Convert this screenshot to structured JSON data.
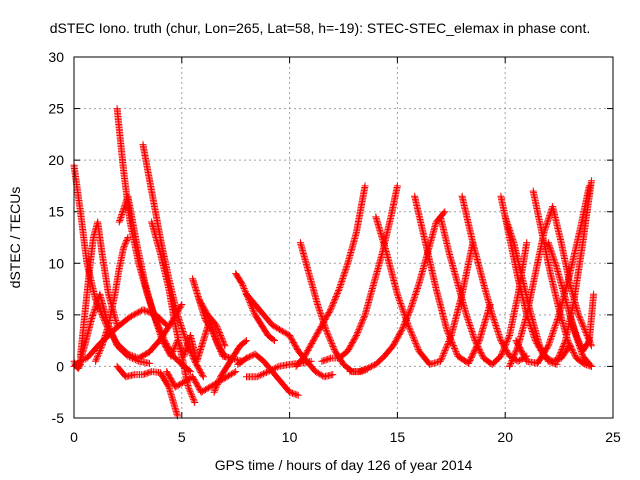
{
  "chart_data": {
    "type": "scatter",
    "title": "dSTEC Iono. truth (chur, Lon=265, Lat=58, h=-19): STEC-STEC_elemax in phase cont.",
    "xlabel": "GPS time / hours of day 126 of year 2014",
    "ylabel": "dSTEC  / TECUs",
    "xlim": [
      0,
      25
    ],
    "ylim": [
      -5,
      30
    ],
    "xticks": [
      0,
      5,
      10,
      15,
      20,
      25
    ],
    "yticks": [
      -5,
      0,
      5,
      10,
      15,
      20,
      25,
      30
    ],
    "grid": true,
    "marker": "+",
    "color": "#ff0000",
    "arcs": [
      {
        "x": [
          0.0,
          0.3,
          0.6,
          1.0,
          1.5,
          2.0,
          2.5,
          3.0,
          3.5,
          4.0,
          4.5,
          5.0
        ],
        "y": [
          19.5,
          15,
          10,
          6.5,
          4,
          2.2,
          1.2,
          0.8,
          1.4,
          2.6,
          4.2,
          6.0
        ]
      },
      {
        "x": [
          0.0,
          0.3,
          0.6,
          0.9,
          1.2,
          1.6,
          2.0,
          2.6,
          3.2,
          3.8,
          4.3
        ],
        "y": [
          0.0,
          0.5,
          0.8,
          1.5,
          2.2,
          3.0,
          3.8,
          4.8,
          5.5,
          5.0,
          4.0
        ]
      },
      {
        "x": [
          0.0,
          0.1,
          0.2,
          0.3
        ],
        "y": [
          0.5,
          0.0,
          -0.2,
          0.2
        ]
      },
      {
        "x": [
          0.2,
          0.5,
          0.8,
          1.2,
          1.6,
          2.0,
          2.5,
          3.0,
          3.5
        ],
        "y": [
          0.0,
          2.0,
          4.5,
          7.0,
          4.0,
          2.0,
          1.0,
          0.5,
          0.3
        ]
      },
      {
        "x": [
          0.3,
          0.5,
          0.7,
          0.9,
          1.1,
          1.3,
          1.6,
          2.0
        ],
        "y": [
          1.0,
          5.0,
          9.0,
          12.5,
          14.0,
          11.0,
          7.0,
          4.0
        ]
      },
      {
        "x": [
          1.0,
          1.3,
          1.6,
          1.9,
          2.1,
          2.3,
          2.5
        ],
        "y": [
          0.5,
          2.0,
          4.0,
          7.0,
          9.5,
          11.5,
          12.5
        ]
      },
      {
        "x": [
          2.0,
          2.3,
          2.6,
          3.0,
          3.4,
          3.8,
          4.2,
          4.6,
          5.0,
          5.4
        ],
        "y": [
          25.0,
          19.0,
          14.0,
          10.0,
          7.0,
          4.5,
          2.5,
          1.0,
          0.2,
          -0.5
        ]
      },
      {
        "x": [
          2.1,
          2.5,
          2.9,
          3.3,
          3.7,
          4.1,
          4.5
        ],
        "y": [
          14.0,
          16.5,
          12.0,
          8.0,
          5.0,
          2.5,
          1.0
        ]
      },
      {
        "x": [
          3.2,
          3.6,
          4.0,
          4.4,
          4.8,
          5.2,
          5.6,
          6.0
        ],
        "y": [
          21.5,
          17.0,
          12.5,
          8.5,
          5.0,
          2.5,
          0.5,
          -1.0
        ]
      },
      {
        "x": [
          3.6,
          4.0,
          4.4,
          4.7,
          5.0,
          5.3,
          5.6
        ],
        "y": [
          14.0,
          11.0,
          7.5,
          4.0,
          1.0,
          -2.0,
          -3.5
        ]
      },
      {
        "x": [
          2.0,
          2.4,
          2.8,
          3.2,
          3.6,
          4.0,
          4.4,
          4.8
        ],
        "y": [
          0.0,
          -1.0,
          -0.8,
          -0.8,
          -0.5,
          -0.6,
          -2.0,
          -4.8
        ]
      },
      {
        "x": [
          4.3,
          4.7,
          5.1,
          5.5,
          5.9,
          6.3,
          6.7,
          7.1,
          7.5
        ],
        "y": [
          -0.5,
          -2.0,
          -1.5,
          -1.0,
          -2.5,
          -2.0,
          -1.5,
          -1.0,
          -0.5
        ]
      },
      {
        "x": [
          4.5,
          4.8,
          5.1,
          5.4,
          5.7,
          6.0,
          6.3,
          6.6,
          6.9,
          7.3,
          7.8
        ],
        "y": [
          1.0,
          2.5,
          1.0,
          3.0,
          0.5,
          2.5,
          4.5,
          2.5,
          1.0,
          0.8,
          0.5
        ]
      },
      {
        "x": [
          5.5,
          5.8,
          6.1,
          6.4,
          6.7,
          7.0
        ],
        "y": [
          8.5,
          6.5,
          4.5,
          3.5,
          2.0,
          1.0
        ]
      },
      {
        "x": [
          5.8,
          6.2,
          6.6,
          7.0
        ],
        "y": [
          6.5,
          5.0,
          4.0,
          2.0
        ]
      },
      {
        "x": [
          6.5,
          6.8,
          7.1,
          7.4,
          7.7,
          8.0
        ],
        "y": [
          -2.5,
          -1.0,
          0.0,
          1.0,
          2.0,
          2.5
        ]
      },
      {
        "x": [
          7.5,
          7.8,
          8.1,
          8.4,
          8.7,
          9.0,
          9.3
        ],
        "y": [
          9.0,
          8.0,
          6.5,
          5.0,
          4.0,
          3.0,
          2.5
        ]
      },
      {
        "x": [
          7.6,
          8.0,
          8.4,
          8.8,
          9.2,
          9.6,
          10.0,
          10.4
        ],
        "y": [
          0.2,
          0.8,
          1.2,
          0.5,
          -0.5,
          -1.5,
          -2.5,
          -2.8
        ]
      },
      {
        "x": [
          8.0,
          8.5,
          9.0,
          9.5,
          10.0,
          10.5,
          11.0
        ],
        "y": [
          -1.0,
          -1.0,
          -0.5,
          0.0,
          0.2,
          0.3,
          0.5
        ]
      },
      {
        "x": [
          8.0,
          8.4,
          8.8,
          9.2,
          9.6,
          10.0
        ],
        "y": [
          7.0,
          6.0,
          5.0,
          4.0,
          3.5,
          3.0
        ]
      },
      {
        "x": [
          10.3,
          10.7,
          11.1,
          11.5,
          11.9,
          12.3,
          12.7,
          13.1,
          13.5
        ],
        "y": [
          0.0,
          1.0,
          2.5,
          4.0,
          5.5,
          7.5,
          10.0,
          13.0,
          17.5
        ]
      },
      {
        "x": [
          10.0,
          10.4,
          10.8,
          11.2,
          11.6,
          12.0
        ],
        "y": [
          3.0,
          1.5,
          0.5,
          -0.5,
          -1.0,
          -0.8
        ]
      },
      {
        "x": [
          10.5,
          10.9,
          11.3,
          11.7,
          12.1,
          12.5,
          12.9,
          13.3,
          13.6
        ],
        "y": [
          12.0,
          9.0,
          6.0,
          3.5,
          1.5,
          0.2,
          -0.5,
          -0.5,
          -0.3
        ]
      },
      {
        "x": [
          11.5,
          11.9,
          12.3,
          12.7,
          13.1,
          13.5,
          13.9,
          14.3,
          14.7,
          15.0
        ],
        "y": [
          0.5,
          0.8,
          0.8,
          1.5,
          3.0,
          5.0,
          8.0,
          11.0,
          14.5,
          17.5
        ]
      },
      {
        "x": [
          12.8,
          13.2,
          13.6,
          14.0,
          14.4,
          14.8,
          15.2,
          15.6,
          16.0,
          16.4,
          16.8,
          17.2
        ],
        "y": [
          -0.5,
          -0.5,
          -0.2,
          0.2,
          1.0,
          2.0,
          3.5,
          5.5,
          8.0,
          11.0,
          14.0,
          15.0
        ]
      },
      {
        "x": [
          14.0,
          14.5,
          15.0,
          15.5,
          16.0,
          16.5,
          17.0,
          17.5,
          18.0,
          18.5
        ],
        "y": [
          14.5,
          11.0,
          7.0,
          4.0,
          1.5,
          0.2,
          0.5,
          3.0,
          7.0,
          12.0
        ]
      },
      {
        "x": [
          15.8,
          16.3,
          16.8,
          17.3,
          17.8,
          18.3,
          18.8,
          19.3
        ],
        "y": [
          16.5,
          12.0,
          7.5,
          3.5,
          1.0,
          0.3,
          2.5,
          6.0
        ]
      },
      {
        "x": [
          17.0,
          17.4,
          17.8,
          18.2,
          18.6,
          19.0,
          19.4,
          19.8,
          20.2,
          20.6,
          21.0
        ],
        "y": [
          14.5,
          11.0,
          8.0,
          5.0,
          2.5,
          0.8,
          0.2,
          1.0,
          3.0,
          7.0,
          12.0
        ]
      },
      {
        "x": [
          18.0,
          18.5,
          19.0,
          19.4,
          19.8,
          20.2,
          20.6,
          21.0
        ],
        "y": [
          16.5,
          12.0,
          8.0,
          5.0,
          2.5,
          1.0,
          0.5,
          1.0
        ]
      },
      {
        "x": [
          19.8,
          20.2,
          20.6,
          21.0,
          21.4,
          21.8,
          22.2,
          22.6,
          23.0
        ],
        "y": [
          16.5,
          12.5,
          8.5,
          5.0,
          2.5,
          1.0,
          0.5,
          0.8,
          2.0
        ]
      },
      {
        "x": [
          20.0,
          20.4,
          20.8,
          21.2,
          21.6,
          22.0,
          22.4
        ],
        "y": [
          14.5,
          12.0,
          8.5,
          5.0,
          2.0,
          0.5,
          0.2
        ]
      },
      {
        "x": [
          20.2,
          20.6,
          21.0,
          21.4,
          21.8,
          22.2,
          22.6,
          23.0,
          23.4,
          23.8,
          24.0
        ],
        "y": [
          0.0,
          2.0,
          5.0,
          9.0,
          13.0,
          15.5,
          12.0,
          8.0,
          5.0,
          3.0,
          2.0
        ]
      },
      {
        "x": [
          20.5,
          21.0,
          21.5,
          22.0,
          22.5,
          23.0,
          23.5,
          23.9
        ],
        "y": [
          2.5,
          0.5,
          0.3,
          2.0,
          5.0,
          9.0,
          13.5,
          17.5
        ]
      },
      {
        "x": [
          21.3,
          21.7,
          22.1,
          22.5,
          22.9,
          23.3,
          23.7,
          24.0
        ],
        "y": [
          17.0,
          13.0,
          9.0,
          5.5,
          2.5,
          0.8,
          0.2,
          0.0
        ]
      },
      {
        "x": [
          22.0,
          22.4,
          22.8,
          23.2,
          23.6,
          24.0
        ],
        "y": [
          12.0,
          9.5,
          6.5,
          3.5,
          1.0,
          0.0
        ]
      },
      {
        "x": [
          22.4,
          22.8,
          23.2,
          23.6,
          24.0
        ],
        "y": [
          0.5,
          2.5,
          6.5,
          12.0,
          18.0
        ]
      },
      {
        "x": [
          23.0,
          23.3,
          23.6,
          23.9,
          24.1
        ],
        "y": [
          5.0,
          3.0,
          1.5,
          2.5,
          7.0
        ]
      }
    ]
  }
}
